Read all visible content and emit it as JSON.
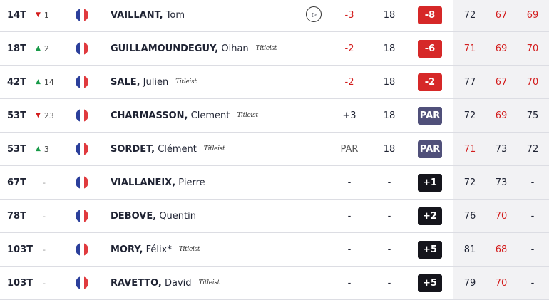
{
  "colors": {
    "under_par": "#d62828",
    "par": "#50507a",
    "over_par": "#15151c",
    "movement_up": "#1a9b4a",
    "movement_down": "#d31d1d",
    "rounds_bg": "#f2f2f4"
  },
  "players": [
    {
      "pos": "14T",
      "move_dir": "down",
      "move_val": "1",
      "flag_colors": [
        "#2b3f9b",
        "#ffffff",
        "#e03a3e"
      ],
      "last_name": "VAILLANT,",
      "first_name": "Tom",
      "brand": "",
      "video_icon": "play-icon",
      "today": "-3",
      "thru": "18",
      "total": "-8",
      "total_type": "under",
      "rounds": [
        {
          "v": "72",
          "red": false
        },
        {
          "v": "67",
          "red": true
        },
        {
          "v": "69",
          "red": true
        }
      ]
    },
    {
      "pos": "18T",
      "move_dir": "up",
      "move_val": "2",
      "flag_colors": [
        "#2b3f9b",
        "#ffffff",
        "#e03a3e"
      ],
      "last_name": "GUILLAMOUNDEGUY,",
      "first_name": "Oihan",
      "brand": "Titleist",
      "today": "-2",
      "thru": "18",
      "total": "-6",
      "total_type": "under",
      "rounds": [
        {
          "v": "71",
          "red": true
        },
        {
          "v": "69",
          "red": true
        },
        {
          "v": "70",
          "red": true
        }
      ]
    },
    {
      "pos": "42T",
      "move_dir": "up",
      "move_val": "14",
      "flag_colors": [
        "#2b3f9b",
        "#ffffff",
        "#e03a3e"
      ],
      "last_name": "SALE,",
      "first_name": "Julien",
      "brand": "Titleist",
      "today": "-2",
      "thru": "18",
      "total": "-2",
      "total_type": "under",
      "rounds": [
        {
          "v": "77",
          "red": false
        },
        {
          "v": "67",
          "red": true
        },
        {
          "v": "70",
          "red": true
        }
      ]
    },
    {
      "pos": "53T",
      "move_dir": "down",
      "move_val": "23",
      "flag_colors": [
        "#2b3f9b",
        "#ffffff",
        "#e03a3e"
      ],
      "last_name": "CHARMASSON,",
      "first_name": "Clement",
      "brand": "Titleist",
      "today": "+3",
      "thru": "18",
      "total": "PAR",
      "total_type": "par",
      "rounds": [
        {
          "v": "72",
          "red": false
        },
        {
          "v": "69",
          "red": true
        },
        {
          "v": "75",
          "red": false
        }
      ]
    },
    {
      "pos": "53T",
      "move_dir": "up",
      "move_val": "3",
      "flag_colors": [
        "#2b3f9b",
        "#ffffff",
        "#e03a3e"
      ],
      "last_name": "SORDET,",
      "first_name": "Clément",
      "brand": "Titleist",
      "today": "PAR",
      "thru": "18",
      "total": "PAR",
      "total_type": "par",
      "rounds": [
        {
          "v": "71",
          "red": true
        },
        {
          "v": "73",
          "red": false
        },
        {
          "v": "72",
          "red": false
        }
      ]
    },
    {
      "pos": "67T",
      "move_dir": "none",
      "move_val": "-",
      "flag_colors": [
        "#2b3f9b",
        "#ffffff",
        "#e03a3e"
      ],
      "last_name": "VIALLANEIX,",
      "first_name": "Pierre",
      "brand": "",
      "today": "-",
      "thru": "-",
      "total": "+1",
      "total_type": "over",
      "rounds": [
        {
          "v": "72",
          "red": false
        },
        {
          "v": "73",
          "red": false
        },
        {
          "v": "-",
          "red": false
        }
      ]
    },
    {
      "pos": "78T",
      "move_dir": "none",
      "move_val": "-",
      "flag_colors": [
        "#2b3f9b",
        "#ffffff",
        "#e03a3e"
      ],
      "last_name": "DEBOVE,",
      "first_name": "Quentin",
      "brand": "",
      "today": "-",
      "thru": "-",
      "total": "+2",
      "total_type": "over",
      "rounds": [
        {
          "v": "76",
          "red": false
        },
        {
          "v": "70",
          "red": true
        },
        {
          "v": "-",
          "red": false
        }
      ]
    },
    {
      "pos": "103T",
      "move_dir": "none",
      "move_val": "-",
      "flag_colors": [
        "#2b3f9b",
        "#ffffff",
        "#e03a3e"
      ],
      "last_name": "MORY,",
      "first_name": "Félix*",
      "brand": "Titleist",
      "today": "-",
      "thru": "-",
      "total": "+5",
      "total_type": "over",
      "rounds": [
        {
          "v": "81",
          "red": false
        },
        {
          "v": "68",
          "red": true
        },
        {
          "v": "-",
          "red": false
        }
      ]
    },
    {
      "pos": "103T",
      "move_dir": "none",
      "move_val": "-",
      "flag_colors": [
        "#2b3f9b",
        "#ffffff",
        "#e03a3e"
      ],
      "last_name": "RAVETTO,",
      "first_name": "David",
      "brand": "Titleist",
      "today": "-",
      "thru": "-",
      "total": "+5",
      "total_type": "over",
      "rounds": [
        {
          "v": "79",
          "red": false
        },
        {
          "v": "70",
          "red": true
        },
        {
          "v": "-",
          "red": false
        }
      ]
    }
  ]
}
